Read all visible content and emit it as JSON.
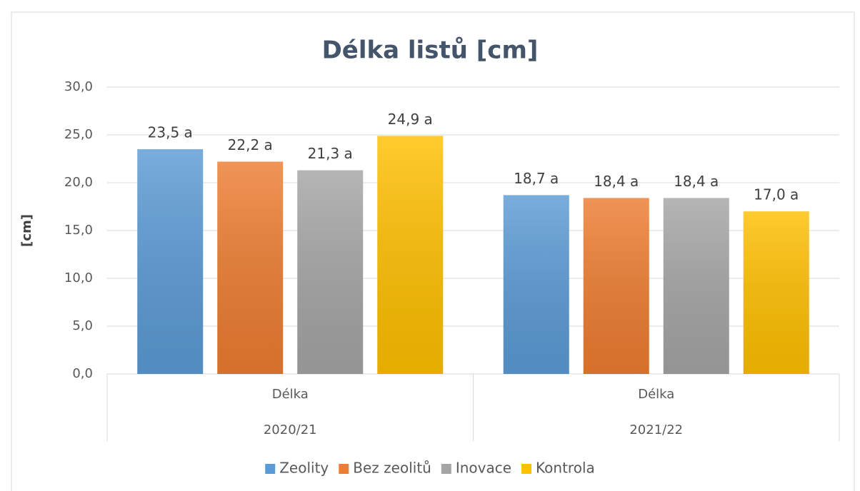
{
  "chart_data": {
    "type": "bar",
    "title": "Délka listů [cm]",
    "y_label": "[cm]",
    "categories": [
      "Délka",
      "Délka"
    ],
    "groups": [
      "2020/21",
      "2021/22"
    ],
    "series": [
      {
        "name": "Zeolity",
        "color": "#5b9bd5",
        "values": [
          23.5,
          18.7
        ],
        "value_labels": [
          "23,5 a",
          "18,7 a"
        ]
      },
      {
        "name": "Bez zeolitů",
        "color": "#ed7d31",
        "values": [
          22.2,
          18.4
        ],
        "value_labels": [
          "22,2 a",
          "18,4 a"
        ]
      },
      {
        "name": "Inovace",
        "color": "#a5a5a5",
        "values": [
          21.3,
          18.4
        ],
        "value_labels": [
          "21,3 a",
          "18,4 a"
        ]
      },
      {
        "name": "Kontrola",
        "color": "#ffc000",
        "values": [
          24.9,
          17.0
        ],
        "value_labels": [
          "24,9 a",
          "17,0 a"
        ]
      }
    ],
    "ylim": [
      0,
      30
    ],
    "yticks": [
      {
        "value": 0,
        "label": "0,0"
      },
      {
        "value": 5,
        "label": "5,0"
      },
      {
        "value": 10,
        "label": "10,0"
      },
      {
        "value": 15,
        "label": "15,0"
      },
      {
        "value": 20,
        "label": "20,0"
      },
      {
        "value": 25,
        "label": "25,0"
      },
      {
        "value": 30,
        "label": "30,0"
      }
    ],
    "grid": true,
    "legend": "bottom"
  }
}
